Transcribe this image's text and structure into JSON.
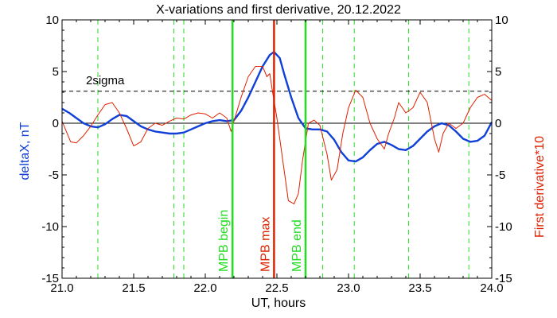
{
  "chart_data": {
    "type": "line",
    "title": "X-variations and first derivative, 20.12.2022",
    "xlabel": "UT, hours",
    "ylabel_left": "deltaX, nT",
    "ylabel_right": "First derivative*10",
    "xlim": [
      21.0,
      24.0
    ],
    "ylim": [
      -15,
      10
    ],
    "x_ticks": [
      "21.0",
      "21.5",
      "22.0",
      "22.5",
      "23.0",
      "23.5",
      "24.0"
    ],
    "x_tick_values": [
      21.0,
      21.5,
      22.0,
      22.5,
      23.0,
      23.5,
      24.0
    ],
    "y_ticks": [
      "10",
      "5",
      "0",
      "-5",
      "-10",
      "-15"
    ],
    "y_tick_values": [
      10,
      5,
      0,
      -5,
      -10,
      -15
    ],
    "sigma_label": "2sigma",
    "sigma_level": 3.1,
    "zero_line": 0,
    "colors": {
      "deltaX": "#1040d8",
      "derivative": "#e02000",
      "markers": "#22dd22",
      "max_marker": "#dd2200",
      "axes": "#000000"
    },
    "series": [
      {
        "name": "deltaX, nT",
        "axis": "left",
        "x": [
          21.0,
          21.05,
          21.1,
          21.15,
          21.2,
          21.25,
          21.3,
          21.35,
          21.4,
          21.45,
          21.5,
          21.55,
          21.6,
          21.65,
          21.7,
          21.75,
          21.8,
          21.85,
          21.9,
          21.95,
          22.0,
          22.05,
          22.1,
          22.15,
          22.2,
          22.25,
          22.3,
          22.35,
          22.4,
          22.45,
          22.48,
          22.52,
          22.55,
          22.6,
          22.65,
          22.7,
          22.75,
          22.8,
          22.85,
          22.9,
          22.95,
          23.0,
          23.05,
          23.1,
          23.15,
          23.2,
          23.25,
          23.3,
          23.35,
          23.4,
          23.45,
          23.5,
          23.55,
          23.6,
          23.65,
          23.7,
          23.75,
          23.8,
          23.85,
          23.9,
          23.95,
          24.0
        ],
        "y": [
          1.4,
          1.0,
          0.5,
          0.0,
          -0.3,
          -0.4,
          -0.1,
          0.4,
          0.8,
          0.7,
          0.2,
          -0.3,
          -0.6,
          -0.8,
          -0.9,
          -1.0,
          -1.0,
          -0.9,
          -0.6,
          -0.3,
          0.0,
          0.2,
          0.3,
          0.2,
          0.3,
          1.2,
          2.5,
          4.0,
          5.5,
          6.6,
          6.9,
          6.3,
          4.8,
          2.5,
          0.5,
          -0.5,
          -0.6,
          -0.6,
          -0.8,
          -1.6,
          -2.8,
          -3.6,
          -3.7,
          -3.3,
          -2.6,
          -2.0,
          -1.8,
          -2.1,
          -2.5,
          -2.6,
          -2.2,
          -1.5,
          -0.8,
          -0.3,
          0.0,
          -0.2,
          -0.8,
          -1.5,
          -1.8,
          -1.7,
          -1.2,
          0.1
        ]
      },
      {
        "name": "First derivative*10",
        "axis": "right",
        "x": [
          21.0,
          21.03,
          21.06,
          21.1,
          21.15,
          21.2,
          21.25,
          21.3,
          21.35,
          21.4,
          21.45,
          21.5,
          21.55,
          21.6,
          21.65,
          21.7,
          21.75,
          21.8,
          21.85,
          21.9,
          21.95,
          22.0,
          22.05,
          22.1,
          22.15,
          22.18,
          22.2,
          22.25,
          22.3,
          22.35,
          22.4,
          22.43,
          22.45,
          22.47,
          22.5,
          22.55,
          22.58,
          22.62,
          22.65,
          22.68,
          22.72,
          22.76,
          22.8,
          22.85,
          22.88,
          22.92,
          22.96,
          23.0,
          23.05,
          23.1,
          23.15,
          23.2,
          23.25,
          23.28,
          23.32,
          23.35,
          23.4,
          23.45,
          23.5,
          23.55,
          23.6,
          23.63,
          23.66,
          23.7,
          23.75,
          23.8,
          23.85,
          23.9,
          23.95,
          24.0
        ],
        "y": [
          0.2,
          -0.8,
          -1.8,
          -1.9,
          -1.2,
          -0.3,
          0.8,
          1.8,
          2.0,
          1.0,
          -0.5,
          -2.2,
          -1.8,
          -0.5,
          0.0,
          -0.2,
          0.2,
          0.5,
          0.4,
          0.8,
          1.0,
          0.9,
          0.5,
          1.0,
          0.5,
          -0.8,
          0.2,
          2.5,
          4.5,
          5.5,
          5.5,
          4.5,
          4.8,
          3.0,
          0.5,
          -4.5,
          -7.5,
          -7.8,
          -6.8,
          -3.5,
          0.0,
          0.3,
          -0.2,
          -3.0,
          -5.5,
          -4.5,
          -1.0,
          1.5,
          3.2,
          2.5,
          0.0,
          -1.5,
          -2.5,
          -1.0,
          0.5,
          2.0,
          1.0,
          1.5,
          3.0,
          2.0,
          -1.5,
          -2.8,
          -1.0,
          0.0,
          -0.5,
          0.0,
          1.5,
          2.5,
          2.8,
          2.2
        ]
      }
    ],
    "dashed_marker_lines": [
      21.25,
      21.78,
      21.85,
      22.82,
      23.04,
      23.42,
      23.84
    ],
    "event_markers": [
      {
        "label": "MPB begin",
        "x": 22.19,
        "color": "#22dd22"
      },
      {
        "label": "MPB max",
        "x": 22.48,
        "color": "#dd2200"
      },
      {
        "label": "MPB end",
        "x": 22.7,
        "color": "#22dd22"
      }
    ]
  }
}
